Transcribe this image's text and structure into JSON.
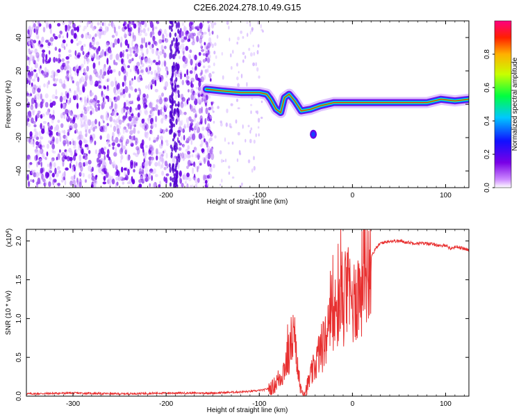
{
  "chart_data": [
    {
      "id": "spectrogram",
      "type": "heatmap",
      "title": "C2E6.2024.278.10.49.G15",
      "xlabel": "Height of straight line (km)",
      "ylabel": "Frequency (Hz)",
      "xlim": [
        -350,
        125
      ],
      "ylim": [
        -50,
        50
      ],
      "xticks": [
        -300,
        -200,
        -100,
        0,
        100
      ],
      "yticks": [
        -40,
        -20,
        0,
        20,
        40
      ],
      "colorbar": {
        "label": "Normalized spectral amplitude",
        "range": [
          0.0,
          1.0
        ],
        "ticks": [
          0.0,
          0.2,
          0.4,
          0.6,
          0.8
        ]
      },
      "signal_trace": [
        {
          "x": -157,
          "y": 9
        },
        {
          "x": -140,
          "y": 8
        },
        {
          "x": -120,
          "y": 7
        },
        {
          "x": -100,
          "y": 7
        },
        {
          "x": -92,
          "y": 6
        },
        {
          "x": -88,
          "y": 3
        },
        {
          "x": -82,
          "y": -3
        },
        {
          "x": -77,
          "y": -5
        },
        {
          "x": -73,
          "y": 4
        },
        {
          "x": -68,
          "y": 6
        },
        {
          "x": -62,
          "y": 2
        },
        {
          "x": -55,
          "y": -4
        },
        {
          "x": -45,
          "y": -3
        },
        {
          "x": -35,
          "y": -1
        },
        {
          "x": -20,
          "y": 1
        },
        {
          "x": -5,
          "y": 1
        },
        {
          "x": 20,
          "y": 1
        },
        {
          "x": 50,
          "y": 1
        },
        {
          "x": 80,
          "y": 1
        },
        {
          "x": 95,
          "y": 3
        },
        {
          "x": 110,
          "y": 2
        },
        {
          "x": 125,
          "y": 3
        }
      ]
    },
    {
      "id": "snr",
      "type": "line",
      "title": "",
      "xlabel": "Height of straight line (km)",
      "ylabel": "SNR (10 * v/v)",
      "multiplier_base": "(x10",
      "multiplier_exp": "4",
      "multiplier_end": ")",
      "xlim": [
        -350,
        125
      ],
      "ylim": [
        0,
        2.15
      ],
      "xticks": [
        -300,
        -200,
        -100,
        0,
        100
      ],
      "yticks": [
        "0.0",
        "0.5",
        "1.0",
        "1.5",
        "2.0"
      ],
      "series": [
        {
          "name": "SNR",
          "color": "#e83030",
          "points": [
            [
              -350,
              0.03
            ],
            [
              -300,
              0.04
            ],
            [
              -250,
              0.03
            ],
            [
              -200,
              0.04
            ],
            [
              -150,
              0.04
            ],
            [
              -130,
              0.05
            ],
            [
              -110,
              0.06
            ],
            [
              -95,
              0.08
            ],
            [
              -85,
              0.12
            ],
            [
              -75,
              0.3
            ],
            [
              -68,
              0.55
            ],
            [
              -65,
              0.75
            ],
            [
              -62,
              0.7
            ],
            [
              -60,
              0.45
            ],
            [
              -57,
              0.2
            ],
            [
              -54,
              0.05
            ],
            [
              -50,
              0.08
            ],
            [
              -45,
              0.25
            ],
            [
              -40,
              0.4
            ],
            [
              -36,
              0.55
            ],
            [
              -32,
              0.65
            ],
            [
              -28,
              0.75
            ],
            [
              -24,
              0.9
            ],
            [
              -20,
              1.0
            ],
            [
              -16,
              1.1
            ],
            [
              -12,
              1.2
            ],
            [
              -8,
              1.25
            ],
            [
              -4,
              1.3
            ],
            [
              0,
              1.2
            ],
            [
              5,
              1.3
            ],
            [
              10,
              1.45
            ],
            [
              15,
              1.65
            ],
            [
              20,
              1.8
            ],
            [
              25,
              1.9
            ],
            [
              30,
              1.97
            ],
            [
              40,
              2.0
            ],
            [
              50,
              2.0
            ],
            [
              60,
              1.98
            ],
            [
              70,
              1.97
            ],
            [
              80,
              1.97
            ],
            [
              90,
              1.95
            ],
            [
              95,
              1.93
            ],
            [
              100,
              1.95
            ],
            [
              105,
              1.9
            ],
            [
              112,
              1.93
            ],
            [
              125,
              1.88
            ]
          ]
        }
      ]
    }
  ]
}
